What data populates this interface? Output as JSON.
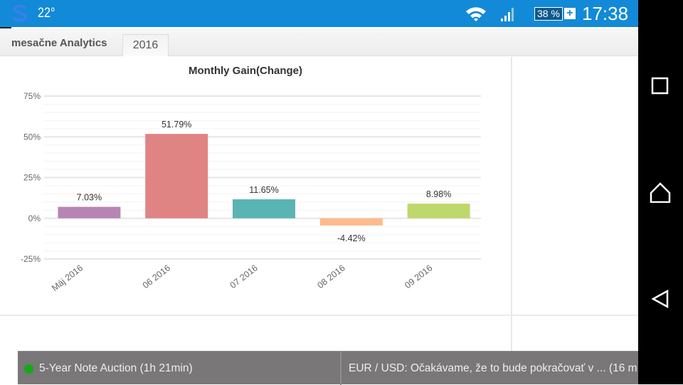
{
  "status_bar": {
    "temperature": "22°",
    "battery": "38 %",
    "battery_charging": "+",
    "time": "17:38",
    "color": "#138ad7"
  },
  "tabs": {
    "title": "mesačne Analytics",
    "active_tab": "2016"
  },
  "chart_data": {
    "type": "bar",
    "title": "Monthly Gain(Change)",
    "categories": [
      "Máj 2016",
      "06 2016",
      "07 2016",
      "08 2016",
      "09 2016"
    ],
    "values": [
      7.03,
      51.79,
      11.65,
      -4.42,
      8.98
    ],
    "value_labels": [
      "7.03%",
      "51.79%",
      "11.65%",
      "-4.42%",
      "8.98%"
    ],
    "colors": [
      "#b785b5",
      "#e08483",
      "#5ab4b3",
      "#fdbb8d",
      "#bfd86c"
    ],
    "yticks": [
      75,
      50,
      25,
      0,
      -25
    ],
    "ytick_labels": [
      "75%",
      "50%",
      "25%",
      "0%",
      "-25%"
    ],
    "ylim": [
      -25,
      75
    ],
    "grid": true,
    "xlabel": "",
    "ylabel": ""
  },
  "ticker": {
    "item1": "5-Year Note Auction (1h 21min)",
    "item2": "EUR / USD: Očakávame, že to bude pokračovať v ...    (16 m",
    "status_color": "#11aa16"
  },
  "nav": {
    "icons": [
      "recent-apps-icon",
      "home-icon",
      "back-icon"
    ]
  }
}
